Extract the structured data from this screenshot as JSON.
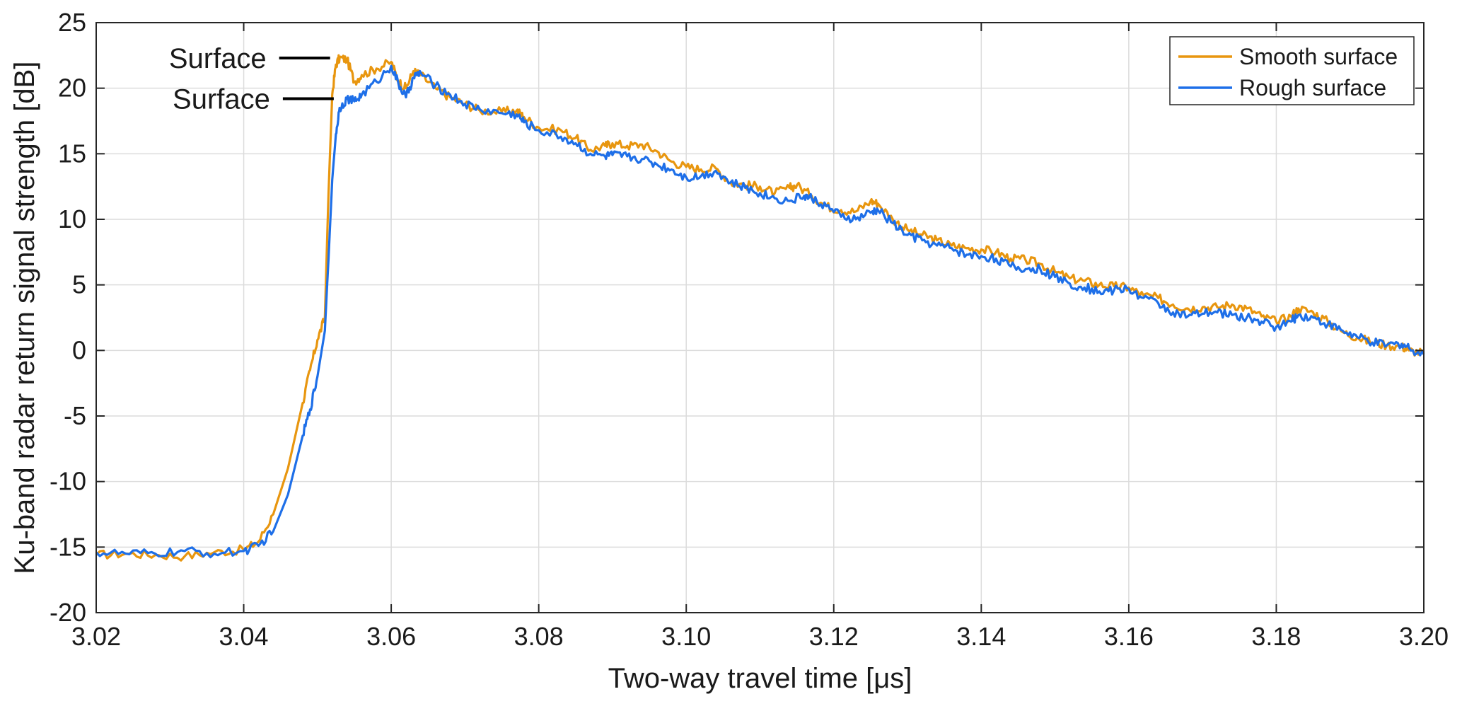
{
  "chart_data": {
    "type": "line",
    "title": "",
    "xlabel": "Two-way travel time [μs]",
    "ylabel": "Ku-band radar return signal strength [dB]",
    "xlim": [
      3.02,
      3.2
    ],
    "ylim": [
      -20,
      25
    ],
    "grid": true,
    "legend_position": "top-right",
    "x_ticks": [
      3.02,
      3.04,
      3.06,
      3.08,
      3.1,
      3.12,
      3.14,
      3.16,
      3.18,
      3.2
    ],
    "x_tick_labels": [
      "3.02",
      "3.04",
      "3.06",
      "3.08",
      "3.10",
      "3.12",
      "3.14",
      "3.16",
      "3.18",
      "3.20"
    ],
    "y_ticks": [
      -20,
      -15,
      -10,
      -5,
      0,
      5,
      10,
      15,
      20,
      25
    ],
    "y_tick_labels": [
      "-20",
      "-15",
      "-10",
      "-5",
      "0",
      "5",
      "10",
      "15",
      "20",
      "25"
    ],
    "annotations": [
      {
        "text": "Surface",
        "series": "Smooth surface",
        "x": 3.052,
        "y": 22.3
      },
      {
        "text": "Surface",
        "series": "Rough surface",
        "x": 3.0525,
        "y": 19.2
      }
    ],
    "series": [
      {
        "name": "Smooth surface",
        "color": "#E8960F",
        "points": [
          [
            3.02,
            -15.6
          ],
          [
            3.024,
            -15.5
          ],
          [
            3.028,
            -15.6
          ],
          [
            3.032,
            -15.7
          ],
          [
            3.036,
            -15.4
          ],
          [
            3.04,
            -15.2
          ],
          [
            3.042,
            -14.6
          ],
          [
            3.044,
            -12.5
          ],
          [
            3.046,
            -9.0
          ],
          [
            3.048,
            -4.0
          ],
          [
            3.049,
            -1.5
          ],
          [
            3.05,
            0.8
          ],
          [
            3.051,
            2.5
          ],
          [
            3.0515,
            12.0
          ],
          [
            3.052,
            19.5
          ],
          [
            3.0525,
            21.8
          ],
          [
            3.053,
            22.3
          ],
          [
            3.054,
            22.2
          ],
          [
            3.055,
            20.5
          ],
          [
            3.056,
            21.0
          ],
          [
            3.058,
            21.5
          ],
          [
            3.06,
            22.0
          ],
          [
            3.061,
            20.5
          ],
          [
            3.062,
            20.0
          ],
          [
            3.063,
            21.3
          ],
          [
            3.064,
            21.0
          ],
          [
            3.066,
            20.0
          ],
          [
            3.068,
            19.3
          ],
          [
            3.07,
            18.8
          ],
          [
            3.072,
            18.3
          ],
          [
            3.075,
            18.2
          ],
          [
            3.077,
            18.3
          ],
          [
            3.078,
            17.8
          ],
          [
            3.08,
            17.0
          ],
          [
            3.083,
            16.8
          ],
          [
            3.085,
            16.2
          ],
          [
            3.087,
            15.3
          ],
          [
            3.089,
            15.6
          ],
          [
            3.09,
            15.8
          ],
          [
            3.092,
            15.6
          ],
          [
            3.094,
            15.7
          ],
          [
            3.096,
            15.2
          ],
          [
            3.098,
            14.4
          ],
          [
            3.1,
            14.0
          ],
          [
            3.102,
            13.8
          ],
          [
            3.104,
            13.9
          ],
          [
            3.106,
            12.8
          ],
          [
            3.108,
            12.6
          ],
          [
            3.11,
            12.5
          ],
          [
            3.112,
            12.0
          ],
          [
            3.114,
            12.4
          ],
          [
            3.115,
            12.6
          ],
          [
            3.117,
            11.8
          ],
          [
            3.119,
            11.0
          ],
          [
            3.121,
            10.7
          ],
          [
            3.123,
            10.6
          ],
          [
            3.125,
            11.4
          ],
          [
            3.126,
            11.2
          ],
          [
            3.128,
            10.0
          ],
          [
            3.13,
            9.2
          ],
          [
            3.132,
            8.8
          ],
          [
            3.134,
            8.4
          ],
          [
            3.136,
            8.0
          ],
          [
            3.138,
            7.8
          ],
          [
            3.14,
            7.7
          ],
          [
            3.142,
            7.5
          ],
          [
            3.144,
            7.0
          ],
          [
            3.146,
            6.9
          ],
          [
            3.148,
            6.6
          ],
          [
            3.15,
            6.0
          ],
          [
            3.152,
            5.5
          ],
          [
            3.154,
            5.3
          ],
          [
            3.156,
            5.0
          ],
          [
            3.158,
            4.9
          ],
          [
            3.16,
            4.8
          ],
          [
            3.162,
            4.2
          ],
          [
            3.164,
            4.0
          ],
          [
            3.166,
            3.5
          ],
          [
            3.168,
            3.2
          ],
          [
            3.17,
            3.3
          ],
          [
            3.172,
            3.3
          ],
          [
            3.174,
            3.5
          ],
          [
            3.176,
            3.2
          ],
          [
            3.178,
            2.6
          ],
          [
            3.18,
            2.2
          ],
          [
            3.182,
            2.6
          ],
          [
            3.183,
            3.2
          ],
          [
            3.185,
            2.9
          ],
          [
            3.187,
            2.2
          ],
          [
            3.189,
            1.4
          ],
          [
            3.191,
            1.0
          ],
          [
            3.193,
            0.6
          ],
          [
            3.195,
            0.4
          ],
          [
            3.197,
            0.3
          ],
          [
            3.198,
            0.0
          ],
          [
            3.2,
            -0.2
          ]
        ]
      },
      {
        "name": "Rough surface",
        "color": "#1E6FE8",
        "points": [
          [
            3.02,
            -15.4
          ],
          [
            3.024,
            -15.5
          ],
          [
            3.028,
            -15.5
          ],
          [
            3.032,
            -15.3
          ],
          [
            3.036,
            -15.5
          ],
          [
            3.04,
            -15.3
          ],
          [
            3.042,
            -14.9
          ],
          [
            3.044,
            -13.8
          ],
          [
            3.046,
            -11.0
          ],
          [
            3.048,
            -6.5
          ],
          [
            3.049,
            -4.5
          ],
          [
            3.05,
            -2.0
          ],
          [
            3.051,
            1.5
          ],
          [
            3.0515,
            7.0
          ],
          [
            3.052,
            13.0
          ],
          [
            3.0525,
            16.5
          ],
          [
            3.053,
            18.5
          ],
          [
            3.054,
            19.2
          ],
          [
            3.055,
            19.0
          ],
          [
            3.056,
            19.5
          ],
          [
            3.058,
            20.5
          ],
          [
            3.06,
            21.7
          ],
          [
            3.061,
            20.3
          ],
          [
            3.062,
            19.3
          ],
          [
            3.063,
            20.8
          ],
          [
            3.064,
            21.2
          ],
          [
            3.066,
            20.2
          ],
          [
            3.068,
            19.5
          ],
          [
            3.07,
            18.8
          ],
          [
            3.072,
            18.4
          ],
          [
            3.075,
            18.1
          ],
          [
            3.077,
            18.0
          ],
          [
            3.078,
            17.4
          ],
          [
            3.08,
            16.8
          ],
          [
            3.083,
            16.3
          ],
          [
            3.085,
            15.8
          ],
          [
            3.087,
            15.0
          ],
          [
            3.089,
            14.8
          ],
          [
            3.09,
            14.9
          ],
          [
            3.092,
            14.8
          ],
          [
            3.094,
            14.6
          ],
          [
            3.096,
            14.2
          ],
          [
            3.098,
            13.8
          ],
          [
            3.1,
            13.2
          ],
          [
            3.102,
            13.3
          ],
          [
            3.104,
            13.7
          ],
          [
            3.106,
            12.8
          ],
          [
            3.108,
            12.4
          ],
          [
            3.11,
            12.0
          ],
          [
            3.112,
            11.6
          ],
          [
            3.114,
            11.4
          ],
          [
            3.116,
            11.8
          ],
          [
            3.117,
            11.6
          ],
          [
            3.119,
            11.0
          ],
          [
            3.121,
            10.2
          ],
          [
            3.123,
            10.0
          ],
          [
            3.125,
            10.5
          ],
          [
            3.126,
            10.7
          ],
          [
            3.128,
            9.7
          ],
          [
            3.13,
            8.8
          ],
          [
            3.132,
            8.4
          ],
          [
            3.134,
            8.0
          ],
          [
            3.136,
            7.8
          ],
          [
            3.138,
            7.3
          ],
          [
            3.14,
            7.2
          ],
          [
            3.142,
            7.0
          ],
          [
            3.144,
            6.4
          ],
          [
            3.146,
            6.2
          ],
          [
            3.148,
            6.2
          ],
          [
            3.15,
            5.6
          ],
          [
            3.152,
            5.1
          ],
          [
            3.154,
            4.8
          ],
          [
            3.156,
            4.5
          ],
          [
            3.158,
            4.6
          ],
          [
            3.16,
            4.7
          ],
          [
            3.162,
            4.0
          ],
          [
            3.164,
            3.6
          ],
          [
            3.166,
            2.9
          ],
          [
            3.168,
            2.6
          ],
          [
            3.17,
            2.8
          ],
          [
            3.172,
            2.9
          ],
          [
            3.174,
            2.7
          ],
          [
            3.176,
            2.5
          ],
          [
            3.178,
            2.2
          ],
          [
            3.18,
            1.8
          ],
          [
            3.182,
            2.2
          ],
          [
            3.183,
            2.7
          ],
          [
            3.185,
            2.5
          ],
          [
            3.187,
            2.0
          ],
          [
            3.189,
            1.5
          ],
          [
            3.191,
            1.0
          ],
          [
            3.193,
            0.6
          ],
          [
            3.195,
            0.4
          ],
          [
            3.197,
            0.5
          ],
          [
            3.198,
            0.2
          ],
          [
            3.2,
            -0.3
          ]
        ]
      }
    ]
  }
}
